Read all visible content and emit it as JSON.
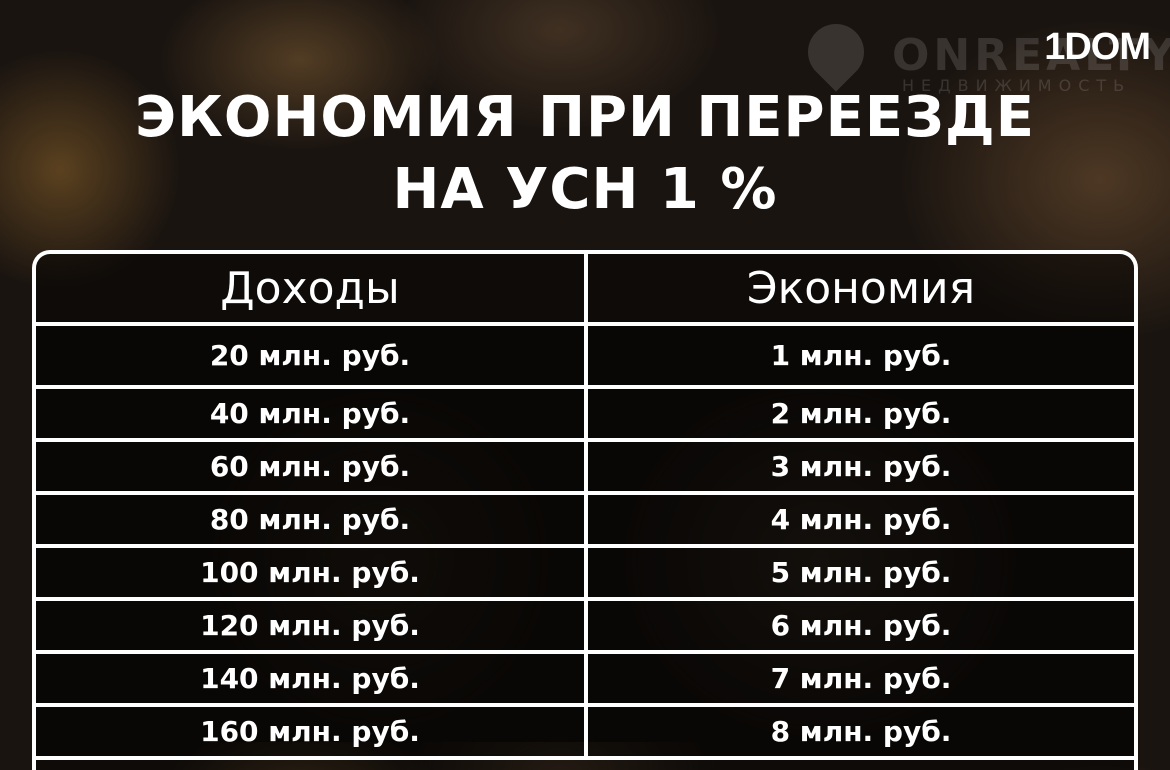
{
  "watermark": {
    "name": "ONREALTY",
    "sub": "НЕДВИЖИМОСТЬ"
  },
  "brand": "1DOM",
  "title": {
    "line1": "ЭКОНОМИЯ ПРИ ПЕРЕЕЗДЕ",
    "line2": "НА УСН 1 %"
  },
  "table": {
    "headers": [
      "Доходы",
      "Экономия"
    ],
    "rows": [
      [
        "20 млн. руб.",
        "1 млн. руб."
      ],
      [
        "40 млн. руб.",
        "2 млн. руб."
      ],
      [
        "60 млн. руб.",
        "3 млн. руб."
      ],
      [
        "80 млн. руб.",
        "4 млн. руб."
      ],
      [
        "100 млн. руб.",
        "5 млн. руб."
      ],
      [
        "120 млн. руб.",
        "6 млн. руб."
      ],
      [
        "140 млн. руб.",
        "7 млн. руб."
      ],
      [
        "160 млн. руб.",
        "8 млн. руб."
      ]
    ]
  }
}
